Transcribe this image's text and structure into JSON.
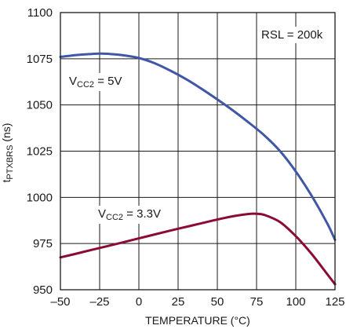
{
  "chart_data": {
    "type": "line",
    "xlabel": "TEMPERATURE (°C)",
    "ylabel": {
      "main": "t",
      "sub": "PTXBRS",
      "unit": " (ns)"
    },
    "xlim": [
      -50,
      125
    ],
    "ylim": [
      950,
      1100
    ],
    "x_ticks": [
      -50,
      -25,
      0,
      25,
      50,
      75,
      100,
      125
    ],
    "x_tick_labels": [
      "–50",
      "–25",
      "0",
      "25",
      "50",
      "75",
      "100",
      "125"
    ],
    "y_ticks": [
      950,
      975,
      1000,
      1025,
      1050,
      1075,
      1100
    ],
    "y_tick_labels": [
      "950",
      "975",
      "1000",
      "1025",
      "1050",
      "1075",
      "1100"
    ],
    "grid": true,
    "annotation": "RSL = 200k",
    "series": [
      {
        "label": {
          "main": "V",
          "sub": "CC2",
          "rest": " = 5V"
        },
        "color": "#3f57a6",
        "x": [
          -50,
          -40,
          -30,
          -25,
          -20,
          -10,
          0,
          10,
          20,
          30,
          40,
          50,
          60,
          70,
          80,
          90,
          100,
          110,
          120,
          125
        ],
        "y": [
          1076,
          1077,
          1077.6,
          1077.8,
          1077.7,
          1076.9,
          1075.4,
          1072.6,
          1068.6,
          1064,
          1058.7,
          1053,
          1047,
          1040.5,
          1033.5,
          1025,
          1014,
          1001,
          986,
          977
        ]
      },
      {
        "label": {
          "main": "V",
          "sub": "CC2",
          "rest": " = 3.3V"
        },
        "color": "#8b0a37",
        "x": [
          -50,
          -40,
          -30,
          -20,
          -10,
          0,
          10,
          20,
          30,
          40,
          50,
          60,
          70,
          75,
          80,
          90,
          100,
          110,
          120,
          125
        ],
        "y": [
          967.5,
          969.5,
          971.6,
          973.6,
          975.7,
          977.8,
          979.9,
          982,
          984,
          986,
          988,
          989.8,
          991,
          991.1,
          990.5,
          986.6,
          979,
          969.5,
          958.5,
          953
        ]
      }
    ]
  }
}
